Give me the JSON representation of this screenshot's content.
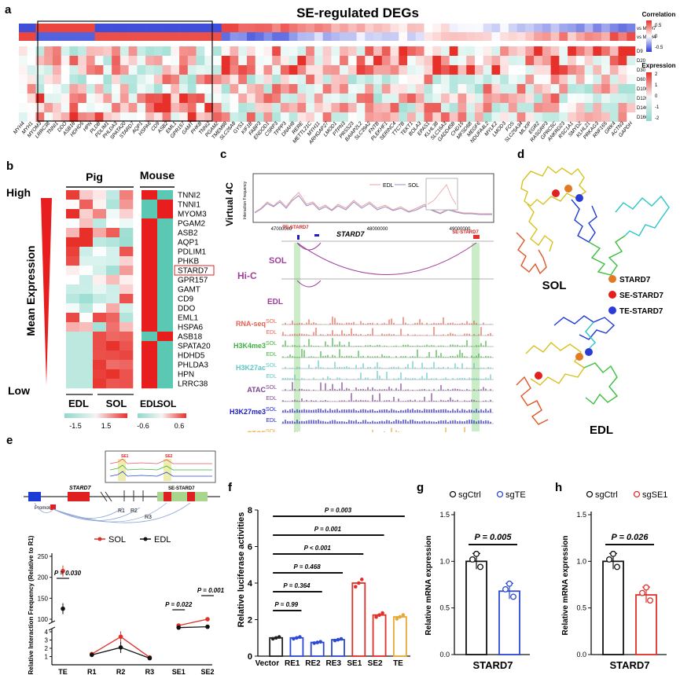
{
  "panel_labels": {
    "a": "a",
    "b": "b",
    "c": "c",
    "d": "d",
    "e": "e",
    "f": "f",
    "g": "g",
    "h": "h"
  },
  "panel_a": {
    "title": "SE-regulated DEGs",
    "corr_rows": [
      "vs MYH7",
      "vs MYH4"
    ],
    "expr_rows": [
      "D9",
      "D20",
      "D30",
      "D60",
      "D100",
      "D120",
      "D140",
      "D160"
    ],
    "genes": [
      "MYH4",
      "MYH1",
      "MYOM3",
      "LRRC38",
      "TNNI1",
      "DDO",
      "ASB18",
      "HDHD5",
      "HPN",
      "PLDB",
      "PDLIM1",
      "PHLDA3",
      "SPATA20",
      "STARD7",
      "AQP1",
      "HSPA6",
      "CD9",
      "ASB2",
      "EML1",
      "GPR157",
      "GAMT",
      "PHKB",
      "TNNI2",
      "PGAM2",
      "TMEM88",
      "SLC26A8",
      "GYS1",
      "KIF1B",
      "FABP3",
      "ENDOD1",
      "CSRP3",
      "TPPP3",
      "DNAH8",
      "RERE",
      "METTL21C",
      "MYH11",
      "ARHGAP27",
      "LMOD1",
      "PTPN3",
      "PRSS23",
      "BAIAP2L2",
      "SLC39A2",
      "FNTB",
      "PLEKHF1",
      "SERINC4",
      "TTC7B",
      "TEKT1",
      "BOLA3",
      "EPAS1",
      "KLHL38",
      "SLC16A3",
      "GADD45B",
      "CHD15",
      "MFSD6B",
      "MEGF6",
      "NDUFA4L2",
      "MYLK2",
      "LMOD3",
      "FOS",
      "SLC25A34",
      "MLXIP",
      "EGR2",
      "RASGRP3",
      "GPRC5C",
      "ANKRD23",
      "RSC1A1",
      "SMYD2",
      "KLHL21",
      "PRKAG3",
      "RNF165",
      "GRK4",
      "ACTN3",
      "GAPDH"
    ],
    "corr_legend_title": "Correlation",
    "corr_legend_ticks": [
      "0.5",
      "0",
      "-0.5"
    ],
    "expr_legend_title": "Expression",
    "expr_legend_ticks": [
      "2",
      "1",
      "0",
      "-1",
      "-2"
    ]
  },
  "panel_b": {
    "group_pig": "Pig",
    "group_mouse": "Mouse",
    "axis_title": "Mean Expression",
    "high_label": "High",
    "low_label": "Low",
    "genes": [
      "TNNI2",
      "TNNI1",
      "MYOM3",
      "PGAM2",
      "ASB2",
      "AQP1",
      "PDLIM1",
      "PHKB",
      "STARD7",
      "GPR157",
      "GAMT",
      "CD9",
      "DDO",
      "EML1",
      "HSPA6",
      "ASB18",
      "SPATA20",
      "HDHD5",
      "PHLDA3",
      "HPN",
      "LRRC38"
    ],
    "highlight_gene": "STARD7",
    "x_labels": [
      "EDL",
      "SOL",
      "EDL",
      "SOL"
    ],
    "legend_pig_ticks": [
      "-1.5",
      "1.5"
    ],
    "legend_mouse_ticks": [
      "-0.6",
      "0.6"
    ]
  },
  "panel_c": {
    "virtual4c_label": "Virtual 4C",
    "ylabel": "Interaction Frequency",
    "legend": [
      "EDL",
      "SOL"
    ],
    "x_ticks": [
      "47000000",
      "48000000",
      "49000000"
    ],
    "te_label": "TE-STARD7",
    "gene_label": "STARD7",
    "se_label": "SE-STARD7",
    "hic_label": "Hi-C",
    "sol_label": "SOL",
    "edl_label": "EDL",
    "tracks": [
      {
        "name": "RNA-seq",
        "color": "#e8604f"
      },
      {
        "name": "H3K4me3",
        "color": "#3fb23f"
      },
      {
        "name": "H3K27ac",
        "color": "#5cc7c7"
      },
      {
        "name": "ATAC",
        "color": "#7b3f8f"
      },
      {
        "name": "H3K27me3",
        "color": "#1c1cc8"
      },
      {
        "name": "CTCF",
        "color": "#e8a838"
      }
    ],
    "track_sub": [
      "SOL",
      "EDL"
    ]
  },
  "panel_d": {
    "sol_label": "SOL",
    "edl_label": "EDL",
    "legend": [
      {
        "label": "STARD7",
        "color": "#e07a25"
      },
      {
        "label": "SE-STARD7",
        "color": "#e0211d"
      },
      {
        "label": "TE-STARD7",
        "color": "#2b3bd6"
      }
    ]
  },
  "panel_e": {
    "gene_label": "STARD7",
    "se_label": "SE-STARD7",
    "promoter_label": "Promoter",
    "r_labels": [
      "R1",
      "R2",
      "R3"
    ],
    "inset_labels": [
      "SE1",
      "SE2"
    ],
    "legend": [
      {
        "label": "SOL",
        "color": "#e0302a"
      },
      {
        "label": "EDL",
        "color": "#111111"
      }
    ],
    "ylabel": "Relative Interaction Frequency (Relative to R1)",
    "y_ticks": [
      "1",
      "2",
      "3",
      "4",
      "100",
      "150",
      "200",
      "250"
    ],
    "p_values": [
      "P = 0.030",
      "P = 0.022",
      "P = 0.001"
    ]
  },
  "panel_f": {
    "ylabel": "Relative luciferase activities",
    "y_ticks": [
      "0",
      "2",
      "4",
      "6",
      "8"
    ],
    "p_values": [
      "P = 0.003",
      "P = 0.001",
      "P < 0.001",
      "P = 0.468",
      "P = 0.364",
      "P = 0.99"
    ]
  },
  "panel_g": {
    "legend": [
      {
        "label": "sgCtrl",
        "color": "#111111"
      },
      {
        "label": "sgTE",
        "color": "#2b48d6"
      }
    ],
    "p_value": "P = 0.005",
    "ylabel": "Relative mRNA expression",
    "xlabel": "STARD7",
    "y_ticks": [
      "0.0",
      "0.5",
      "1.0",
      "1.5"
    ]
  },
  "panel_h": {
    "legend": [
      {
        "label": "sgCtrl",
        "color": "#111111"
      },
      {
        "label": "sgSE1",
        "color": "#e0302a"
      }
    ],
    "p_value": "P = 0.026",
    "ylabel": "Relative mRNA expression",
    "xlabel": "STARD7",
    "y_ticks": [
      "0.0",
      "0.5",
      "1.0",
      "1.5"
    ]
  },
  "chart_data": [
    {
      "type": "line",
      "title": "",
      "panel": "e",
      "categories": [
        "TE",
        "R1",
        "R2",
        "R3",
        "SE1",
        "SE2"
      ],
      "series": [
        {
          "name": "SOL",
          "values": [
            215,
            1.3,
            3.4,
            0.9,
            85,
            100
          ]
        },
        {
          "name": "EDL",
          "values": [
            125,
            1.2,
            2.1,
            0.8,
            80,
            82
          ]
        }
      ],
      "ylabel": "Relative Interaction Frequency (Relative to R1)",
      "ylim_lower": [
        0,
        4
      ],
      "ylim_upper": [
        100,
        250
      ]
    },
    {
      "type": "bar",
      "panel": "f",
      "categories": [
        "Vector",
        "RE1",
        "RE2",
        "RE3",
        "SE1",
        "SE2",
        "TE"
      ],
      "values": [
        1.0,
        1.0,
        0.75,
        0.9,
        4.0,
        2.25,
        2.15
      ],
      "colors": [
        "#222222",
        "#2b48d6",
        "#2b48d6",
        "#2b48d6",
        "#e0302a",
        "#e0302a",
        "#e8a838"
      ],
      "ylabel": "Relative luciferase activities",
      "ylim": [
        0,
        8
      ]
    },
    {
      "type": "bar",
      "panel": "g",
      "categories": [
        "sgCtrl",
        "sgTE"
      ],
      "values": [
        1.0,
        0.68
      ],
      "xlabel": "STARD7",
      "ylabel": "Relative mRNA expression",
      "ylim": [
        0,
        1.5
      ]
    },
    {
      "type": "bar",
      "panel": "h",
      "categories": [
        "sgCtrl",
        "sgSE1"
      ],
      "values": [
        1.0,
        0.64
      ],
      "xlabel": "STARD7",
      "ylabel": "Relative mRNA expression",
      "ylim": [
        0,
        1.5
      ]
    }
  ]
}
